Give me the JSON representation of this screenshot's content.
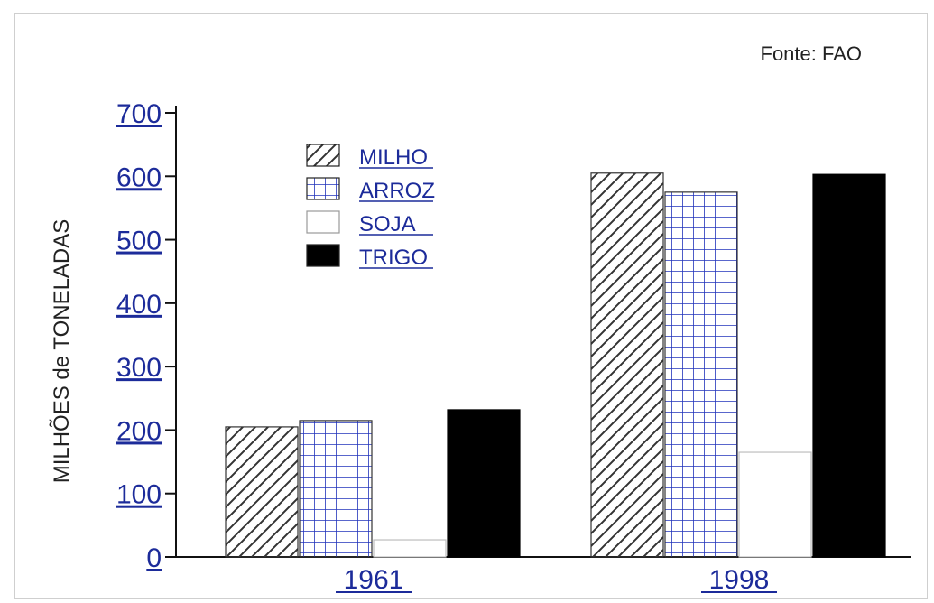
{
  "source": "Fonte: FAO",
  "chart_data": {
    "type": "bar",
    "ylabel": "MILHÕES de TONELADAS",
    "ylim": [
      0,
      700
    ],
    "yticks": [
      0,
      100,
      200,
      300,
      400,
      500,
      600,
      700
    ],
    "categories": [
      "1961",
      "1998"
    ],
    "series": [
      {
        "name": "MILHO",
        "values": [
          205,
          605
        ],
        "pattern": "diagonal"
      },
      {
        "name": "ARROZ",
        "values": [
          215,
          575
        ],
        "pattern": "grid"
      },
      {
        "name": "SOJA",
        "values": [
          27,
          165
        ],
        "pattern": "empty"
      },
      {
        "name": "TRIGO",
        "values": [
          232,
          603
        ],
        "pattern": "solid"
      }
    ],
    "legend_position": "top-left",
    "grid": false
  },
  "colors": {
    "tick": "#1c2b9a",
    "bar_solid": "#000000",
    "hatch_blue": "#2233bb"
  }
}
